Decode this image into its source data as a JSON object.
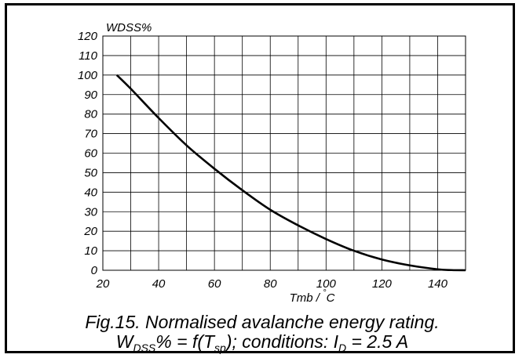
{
  "chart_data": {
    "type": "line",
    "ylabel": "WDSS%",
    "xlabel": "Tmb / °C",
    "xlabel_parts": {
      "main": "Tmb / ",
      "degree": "°",
      "unit": "C"
    },
    "xlim": [
      20,
      150
    ],
    "ylim": [
      0,
      120
    ],
    "x_ticks": [
      20,
      40,
      60,
      80,
      100,
      120,
      140
    ],
    "y_ticks": [
      0,
      10,
      20,
      30,
      40,
      50,
      60,
      70,
      80,
      90,
      100,
      110,
      120
    ],
    "grid": true,
    "series": [
      {
        "x": [
          25,
          30,
          40,
          50,
          60,
          70,
          80,
          90,
          100,
          110,
          120,
          130,
          140,
          145,
          150
        ],
        "y": [
          100,
          93,
          78,
          64,
          52,
          41,
          31,
          23,
          16,
          10,
          5.5,
          2.5,
          0.5,
          0.1,
          0
        ],
        "color": "#000000"
      }
    ]
  },
  "caption": {
    "line1": "Fig.15.   Normalised avalanche energy rating.",
    "line2_w": "W",
    "line2_w_sub": "DSS",
    "line2_mid": "% = f(T",
    "line2_t_sub": "sp",
    "line2_cond": "); conditions: I",
    "line2_i_sub": "D",
    "line2_end": " = 2.5 A"
  }
}
